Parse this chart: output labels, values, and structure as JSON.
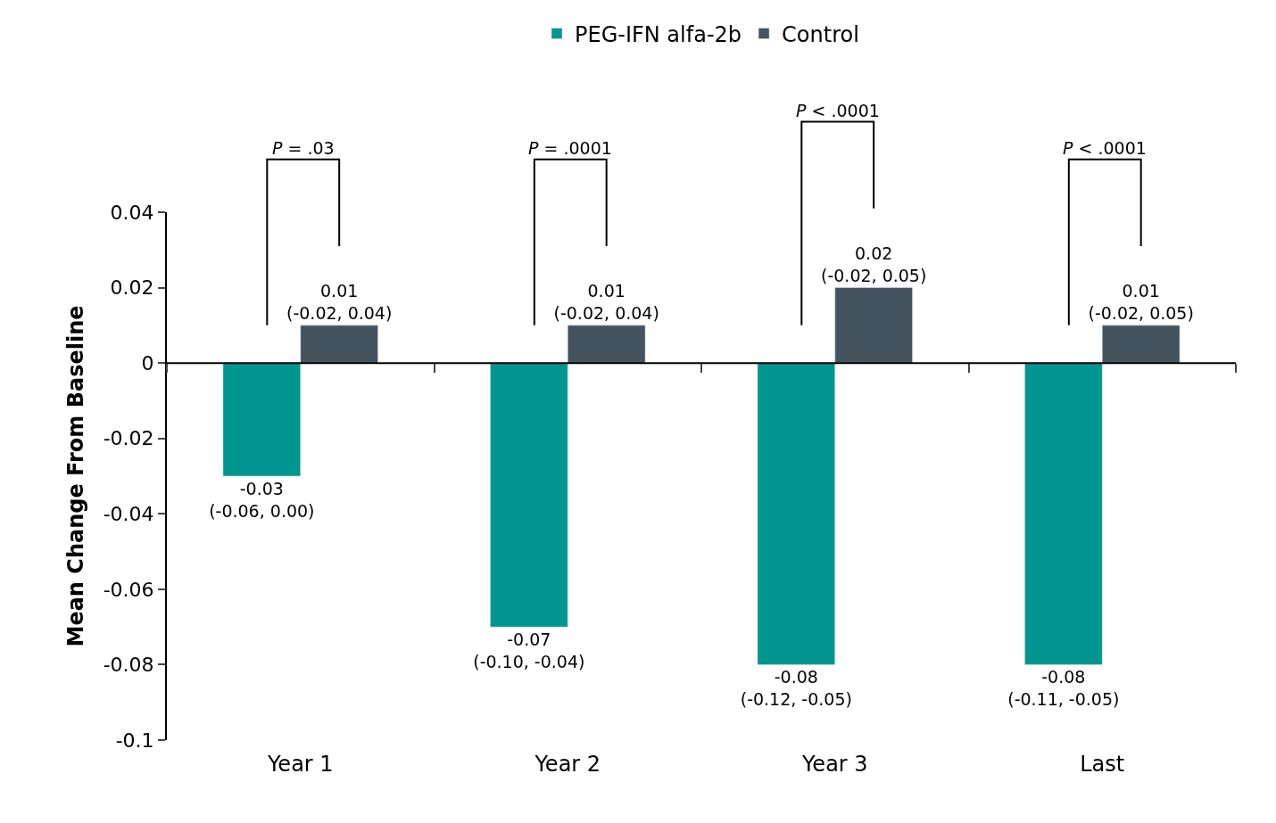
{
  "chart_data": {
    "type": "bar",
    "ylabel": "Mean Change From Baseline",
    "categories": [
      "Year 1",
      "Year 2",
      "Year 3",
      "Last"
    ],
    "series": [
      {
        "name": "PEG-IFN alfa-2b",
        "color": "#00968f",
        "values": [
          -0.03,
          -0.07,
          -0.08,
          -0.08
        ],
        "value_labels": [
          "-0.03\n(-0.06, 0.00)",
          "-0.07\n(-0.10, -0.04)",
          "-0.08\n(-0.12, -0.05)",
          "-0.08\n(-0.11, -0.05)"
        ]
      },
      {
        "name": "Control",
        "color": "#45535e",
        "values": [
          0.01,
          0.01,
          0.02,
          0.01
        ],
        "value_labels": [
          "0.01\n(-0.02, 0.04)",
          "0.01\n(-0.02, 0.04)",
          "0.02\n(-0.02, 0.05)",
          "0.01\n(-0.02, 0.05)"
        ]
      }
    ],
    "ylim": [
      -0.1,
      0.04
    ],
    "yticks": [
      {
        "value": -0.1,
        "label": "-0.1"
      },
      -0.08,
      -0.06,
      -0.04,
      -0.02,
      0,
      0.02,
      0.04
    ],
    "annotations": [
      "P = .03",
      "P = .0001",
      "P < .0001",
      "P < .0001"
    ],
    "ref_lines": [
      {
        "axis": "y",
        "value": 0
      }
    ],
    "legend": "top"
  }
}
